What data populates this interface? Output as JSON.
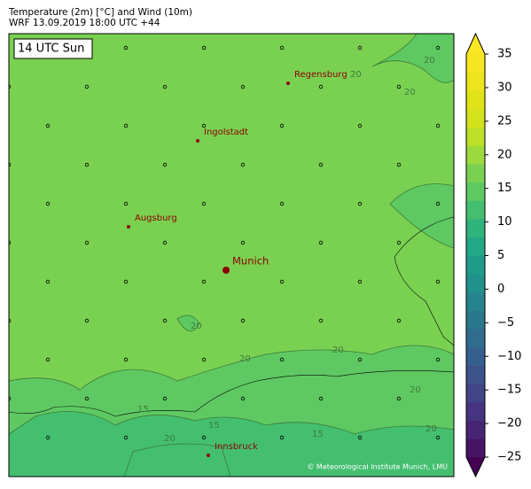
{
  "header": {
    "title": "Temperature (2m) [°C] and Wind (10m)",
    "subtitle": "WRF 13.09.2019 18:00 UTC +44"
  },
  "time_label": "14 UTC Sun",
  "cities": [
    {
      "name": "Regensburg"
    },
    {
      "name": "Ingolstadt"
    },
    {
      "name": "Augsburg"
    },
    {
      "name": "Munich"
    },
    {
      "name": "Innsbruck"
    }
  ],
  "contour_labels": [
    "20",
    "20",
    "20",
    "20",
    "20",
    "20",
    "20",
    "15",
    "15",
    "15",
    "20",
    "20"
  ],
  "credit": "© Meteorological Institute Munich, LMU",
  "colorbar": {
    "lim": [
      -25,
      35
    ],
    "ticks": [
      35,
      30,
      25,
      20,
      15,
      10,
      5,
      0,
      {
        "value": -5,
        "label": "−5"
      },
      {
        "value": -10,
        "label": "−10"
      },
      {
        "value": -15,
        "label": "−15"
      },
      {
        "value": -20,
        "label": "−20"
      },
      {
        "value": -25,
        "label": "−25"
      }
    ],
    "colors": [
      "#440154",
      "#471365",
      "#482475",
      "#463480",
      "#414487",
      "#3b528b",
      "#355f8d",
      "#2f6c8e",
      "#2a788e",
      "#25848e",
      "#21918c",
      "#1e9c89",
      "#22a884",
      "#2fb47c",
      "#44bf70",
      "#5ec962",
      "#7ad151",
      "#9bd93c",
      "#bddf26",
      "#d4e21a",
      "#dfe318",
      "#ecE51b",
      "#f6e620",
      "#fde725"
    ]
  }
}
